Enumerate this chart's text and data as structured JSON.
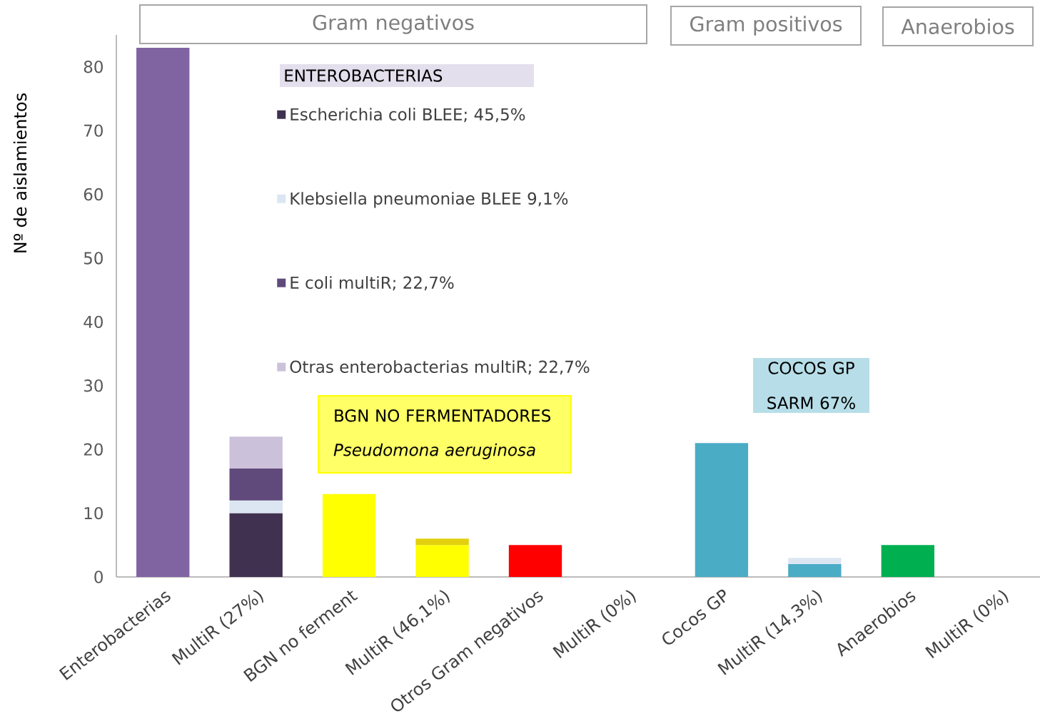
{
  "chart_data": {
    "type": "bar",
    "stacked": true,
    "categories": [
      "Enterobacterias",
      "MultiR (27%)",
      "BGN no ferment",
      "MultiR (46,1%)",
      "Otros Gram negativos",
      "MultiR (0%)",
      "Cocos GP",
      "MultiR (14,3%)",
      "Anaerobios",
      "MultiR (0%)"
    ],
    "series": [
      {
        "name": "Escherichia coli BLEE; 45,5%",
        "color": "#403151",
        "values": [
          null,
          10,
          null,
          null,
          null,
          null,
          null,
          null,
          null,
          null
        ]
      },
      {
        "name": "Klebsiella pneumoniae BLEE 9,1%",
        "color": "#dce6f2",
        "values": [
          null,
          2,
          null,
          null,
          null,
          null,
          null,
          null,
          null,
          null
        ]
      },
      {
        "name": "E coli multiR; 22,7%",
        "color": "#604a7b",
        "values": [
          null,
          5,
          null,
          null,
          null,
          null,
          null,
          null,
          null,
          null
        ]
      },
      {
        "name": "Otras enterobacterias multiR; 22,7%",
        "color": "#ccc1da",
        "values": [
          null,
          5,
          null,
          null,
          null,
          null,
          null,
          null,
          null,
          null
        ]
      },
      {
        "colors": [
          "#8064a2",
          null,
          "#ffff00",
          "#ffff00",
          "#ff0000",
          null,
          "#4bacc6",
          "#4bacc6",
          "#00b050",
          null
        ],
        "values": [
          83,
          null,
          13,
          5,
          5,
          0,
          21,
          2,
          5,
          0
        ]
      },
      {
        "colors": [
          null,
          null,
          null,
          "#e2d00e",
          null,
          null,
          null,
          "#dce6f2",
          null,
          null
        ],
        "values": [
          null,
          null,
          null,
          1,
          null,
          null,
          null,
          1,
          null,
          null
        ]
      }
    ],
    "ylabel": "Nº de aislamientos",
    "ylim": [
      0,
      85
    ],
    "yticks": [
      0,
      10,
      20,
      30,
      40,
      50,
      60,
      70,
      80
    ],
    "legend": "top",
    "legend_title": "ENTEROBACTERIAS",
    "annotations": [
      "Gram negativos",
      "Gram positivos",
      "Anaerobios",
      "BGN NO FERMENTADORES",
      "*Pseudomona aeruginosa*",
      "COCOS GP",
      "SARM 67%"
    ]
  }
}
